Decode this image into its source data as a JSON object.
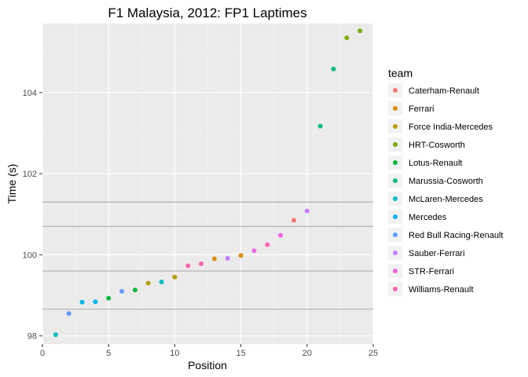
{
  "chart_data": {
    "type": "scatter",
    "title": "F1 Malaysia, 2012: FP1 Laptimes",
    "xlabel": "Position",
    "ylabel": "Time (s)",
    "xlim": [
      0,
      25
    ],
    "ylim": [
      97.8,
      105.7
    ],
    "xticks": [
      0,
      5,
      10,
      15,
      20,
      25
    ],
    "yticks": [
      98,
      100,
      102,
      104
    ],
    "grid": true,
    "legend": {
      "title": "team",
      "position": "right"
    },
    "series": [
      {
        "name": "Caterham-Renault",
        "color": "#F8766D",
        "points": [
          [
            19,
            100.85
          ]
        ]
      },
      {
        "name": "Ferrari",
        "color": "#DE8C00",
        "points": [
          [
            13,
            99.9
          ],
          [
            15,
            99.98
          ]
        ]
      },
      {
        "name": "Force India-Mercedes",
        "color": "#B79F00",
        "points": [
          [
            8,
            99.3
          ],
          [
            10,
            99.45
          ]
        ]
      },
      {
        "name": "HRT-Cosworth",
        "color": "#7CAE00",
        "points": [
          [
            23,
            105.35
          ],
          [
            24,
            105.52
          ]
        ]
      },
      {
        "name": "Lotus-Renault",
        "color": "#00BA38",
        "points": [
          [
            5,
            98.93
          ],
          [
            7,
            99.13
          ]
        ]
      },
      {
        "name": "Marussia-Cosworth",
        "color": "#00BF7D",
        "points": [
          [
            21,
            103.17
          ],
          [
            22,
            104.58
          ]
        ]
      },
      {
        "name": "McLaren-Mercedes",
        "color": "#00BFC4",
        "points": [
          [
            1,
            98.03
          ],
          [
            9,
            99.33
          ]
        ]
      },
      {
        "name": "Mercedes",
        "color": "#00B4F0",
        "points": [
          [
            3,
            98.83
          ],
          [
            4,
            98.84
          ]
        ]
      },
      {
        "name": "Red Bull Racing-Renault",
        "color": "#619CFF",
        "points": [
          [
            2,
            98.55
          ],
          [
            6,
            99.1
          ]
        ]
      },
      {
        "name": "Sauber-Ferrari",
        "color": "#C77CFF",
        "points": [
          [
            14,
            99.91
          ],
          [
            20,
            101.08
          ]
        ]
      },
      {
        "name": "STR-Ferrari",
        "color": "#F564E3",
        "points": [
          [
            16,
            100.1
          ],
          [
            18,
            100.48
          ]
        ]
      },
      {
        "name": "Williams-Renault",
        "color": "#FF64B0",
        "points": [
          [
            11,
            99.73
          ],
          [
            12,
            99.78
          ],
          [
            17,
            100.25
          ]
        ]
      }
    ],
    "reference_lines_y": [
      98.66,
      99.6,
      100.7,
      101.3
    ]
  }
}
